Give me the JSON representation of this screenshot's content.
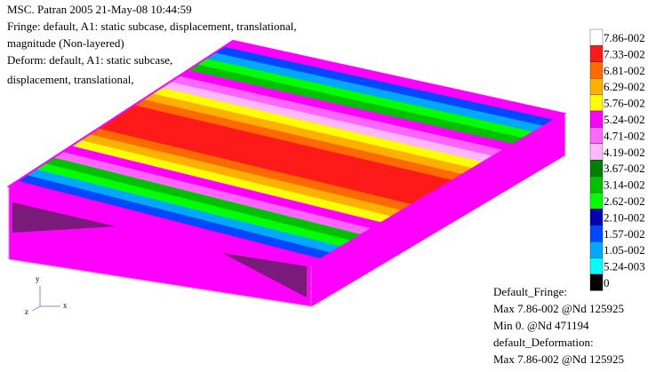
{
  "header": {
    "lines": [
      "MSC. Patran 2005 21-May-08 10:44:59",
      "Fringe: default, A1: static subcase, displacement, translational,",
      "magnitude (Non-layered)",
      "Deform: default, A1: static subcase,",
      "displacement, translational,"
    ]
  },
  "legend": {
    "entries": [
      {
        "label": "7.86-002",
        "color": "#ffffff"
      },
      {
        "label": "7.33-002",
        "color": "#ff1a1a"
      },
      {
        "label": "6.81-002",
        "color": "#ff6a00"
      },
      {
        "label": "6.29-002",
        "color": "#ffb000"
      },
      {
        "label": "5.76-002",
        "color": "#ffff00"
      },
      {
        "label": "5.24-002",
        "color": "#ff00ff"
      },
      {
        "label": "4.71-002",
        "color": "#ff66ff"
      },
      {
        "label": "4.19-002",
        "color": "#ffb8ff"
      },
      {
        "label": "3.67-002",
        "color": "#008000"
      },
      {
        "label": "3.14-002",
        "color": "#00c000"
      },
      {
        "label": "2.62-002",
        "color": "#00ff00"
      },
      {
        "label": "2.10-002",
        "color": "#0000b0"
      },
      {
        "label": "1.57-002",
        "color": "#0048ff"
      },
      {
        "label": "1.05-002",
        "color": "#00a8ff"
      },
      {
        "label": "5.24-003",
        "color": "#00ffff"
      },
      {
        "label": "0",
        "color": "#000000"
      }
    ]
  },
  "footer": {
    "lines": [
      "Default_Fringe:",
      "Max 7.86-002 @Nd 125925",
      "Min 0. @Nd 471194",
      "default_Deformation:",
      "Max 7.86-002 @Nd 125925"
    ]
  },
  "triad": {
    "x": "x",
    "y": "y",
    "z": "z"
  }
}
